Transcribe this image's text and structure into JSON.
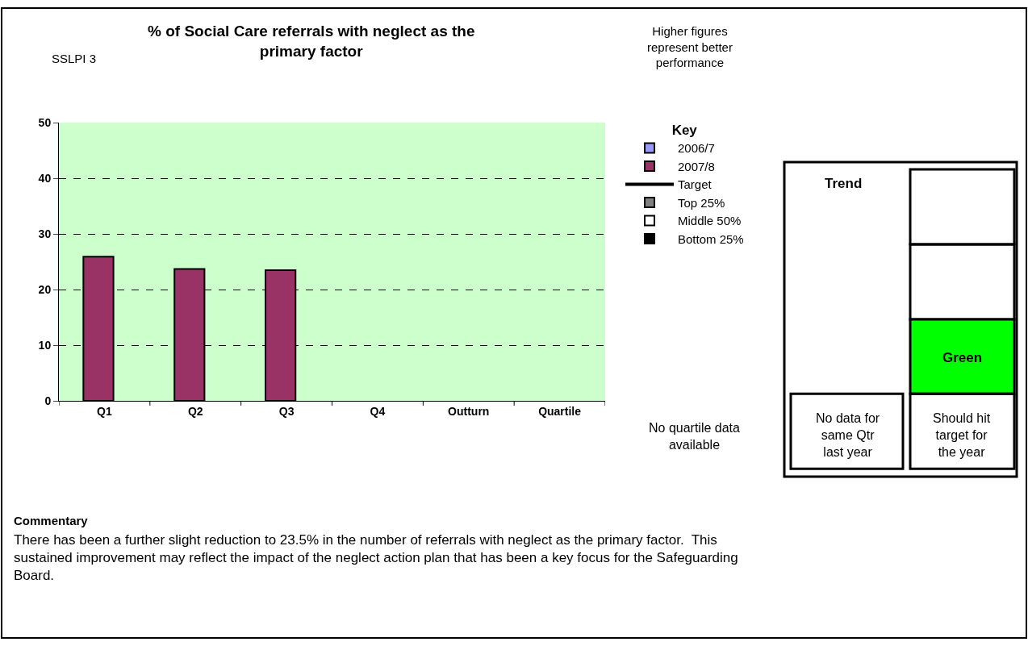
{
  "chart_data": {
    "type": "bar",
    "title": "% of Social Care referrals with neglect as the primary factor",
    "categories": [
      "Q1",
      "Q2",
      "Q3",
      "Q4",
      "Outturn",
      "Quartile"
    ],
    "series": [
      {
        "name": "2006/7",
        "color": "#9999ff",
        "values": [
          null,
          null,
          null,
          null,
          null,
          null
        ]
      },
      {
        "name": "2007/8",
        "color": "#993366",
        "values": [
          25.9,
          23.7,
          23.5,
          null,
          null,
          null
        ]
      },
      {
        "name": "Target",
        "type": "line",
        "color": "#000000",
        "values": [
          null,
          null,
          null,
          null,
          null,
          null
        ]
      },
      {
        "name": "Top 25%",
        "color": "#808080",
        "values": [
          null,
          null,
          null,
          null,
          null,
          null
        ]
      },
      {
        "name": "Middle 50%",
        "color": "#ffffff",
        "values": [
          null,
          null,
          null,
          null,
          null,
          null
        ]
      },
      {
        "name": "Bottom 25%",
        "color": "#000000",
        "values": [
          null,
          null,
          null,
          null,
          null,
          null
        ]
      }
    ],
    "ylim": [
      0,
      50
    ],
    "yticks": [
      0,
      10,
      20,
      30,
      40,
      50
    ],
    "grid": "y",
    "legend": "right",
    "legend_title": "Key",
    "annotations": [
      "SSLPI 3",
      "Higher figures represent better performance",
      "No quartile data available",
      "Trend",
      "Green",
      "No data for same Qtr last year",
      "Should hit target for the year",
      "Commentary",
      "There has been a further slight reduction to 23.5% in the number of referrals with neglect as the primary factor.  This sustained improvement may reflect the impact of the neglect action plan that has been a key focus for the Safeguarding Board."
    ]
  }
}
